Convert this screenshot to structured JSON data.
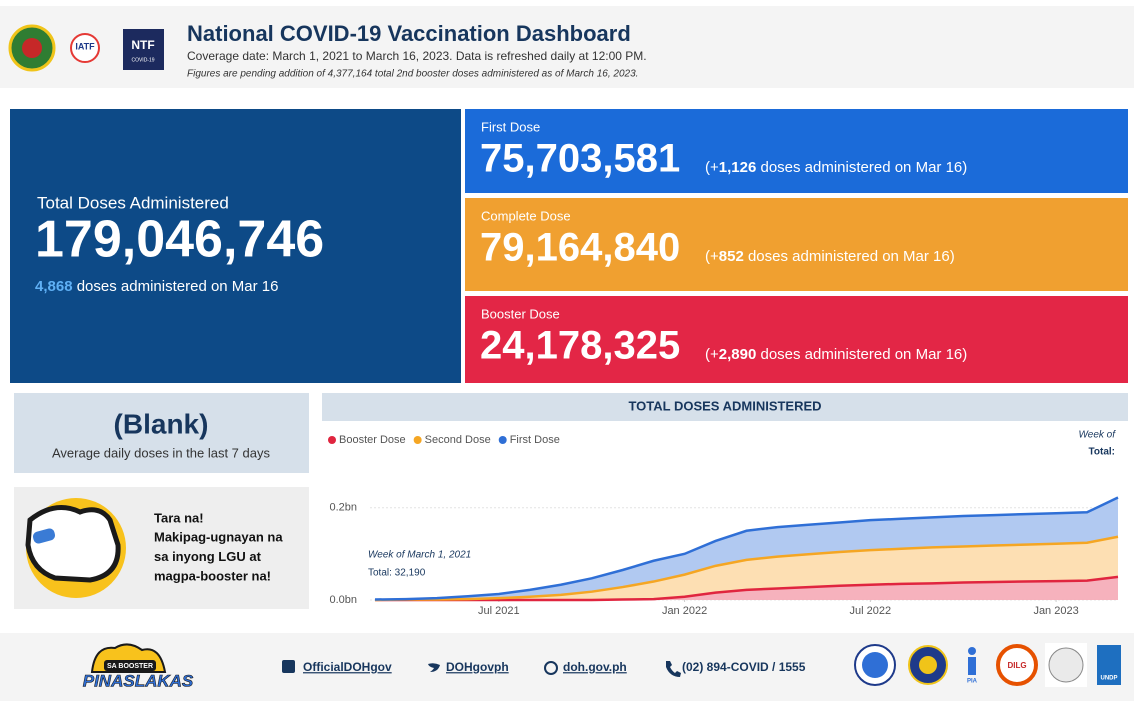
{
  "header": {
    "title": "National COVID-19 Vaccination Dashboard",
    "coverage": "Coverage date: March 1, 2021 to March 16, 2023. Data is refreshed daily at 12:00 PM.",
    "note": "Figures are pending addition of 4,377,164 total 2nd booster doses administered as of March 16, 2023.",
    "logos": {
      "iatf": "IATF",
      "ntf": "NTF",
      "ntf_sub": "COVID-19"
    }
  },
  "total": {
    "label": "Total Doses Administered",
    "value": "179,046,746",
    "today": "4,868",
    "today_text": " doses administered on Mar 16"
  },
  "doses": [
    {
      "label": "First Dose",
      "value": "75,703,581",
      "prefix": "(+",
      "today": "1,126",
      "today_text": " doses administered on Mar 16)"
    },
    {
      "label": "Complete Dose",
      "value": "79,164,840",
      "prefix": "(+",
      "today": "852",
      "today_text": " doses administered on Mar 16)"
    },
    {
      "label": "Booster Dose",
      "value": "24,178,325",
      "prefix": "(+",
      "today": "2,890",
      "today_text": " doses administered on Mar 16)"
    }
  ],
  "average": {
    "value": "(Blank)",
    "label": "Average daily doses in the last 7 days"
  },
  "promo": {
    "lines": [
      "Tara na!",
      "Makipag-ugnayan na",
      "sa inyong LGU at",
      "magpa-booster na!"
    ]
  },
  "chart_data": {
    "type": "stacked_area",
    "title": "TOTAL DOSES ADMINISTERED",
    "annotations": [
      "Week of",
      "Total:",
      "Week of March 1, 2021",
      "Total: 32,190"
    ],
    "x": [
      "2021-03",
      "2021-04",
      "2021-05",
      "2021-06",
      "2021-07",
      "2021-08",
      "2021-09",
      "2021-10",
      "2021-11",
      "2021-12",
      "2022-01",
      "2022-02",
      "2022-03",
      "2022-04",
      "2022-05",
      "2022-06",
      "2022-07",
      "2022-08",
      "2022-09",
      "2022-10",
      "2022-11",
      "2022-12",
      "2023-01",
      "2023-02",
      "2023-03"
    ],
    "xlim": [
      "2021-03",
      "2023-03"
    ],
    "xticks": [
      {
        "value": "2021-07",
        "label": "Jul 2021"
      },
      {
        "value": "2022-01",
        "label": "Jan 2022"
      },
      {
        "value": "2022-07",
        "label": "Jul 2022"
      },
      {
        "value": "2023-01",
        "label": "Jan 2023"
      }
    ],
    "ylim": [
      0,
      0.26
    ],
    "yticks": [
      {
        "value": 0,
        "label": "0.0bn"
      },
      {
        "value": 0.2,
        "label": "0.2bn"
      }
    ],
    "grid": true,
    "series": [
      {
        "name": "Booster Dose",
        "color": "#e0253f",
        "fill": "#f5aab6",
        "values": [
          0,
          0,
          0,
          0,
          0,
          0,
          0,
          0,
          0.001,
          0.002,
          0.007,
          0.016,
          0.022,
          0.025,
          0.028,
          0.031,
          0.033,
          0.035,
          0.036,
          0.038,
          0.039,
          0.04,
          0.041,
          0.042,
          0.05
        ]
      },
      {
        "name": "Second Dose",
        "color": "#f5a623",
        "fill": "#fddcab",
        "values": [
          0,
          0.001,
          0.001,
          0.002,
          0.004,
          0.007,
          0.011,
          0.018,
          0.027,
          0.038,
          0.048,
          0.058,
          0.065,
          0.069,
          0.071,
          0.073,
          0.075,
          0.076,
          0.078,
          0.078,
          0.079,
          0.08,
          0.081,
          0.082,
          0.087
        ]
      },
      {
        "name": "First Dose",
        "color": "#2f6fd6",
        "fill": "#a9c3ef",
        "values": [
          0.001,
          0.001,
          0.003,
          0.006,
          0.009,
          0.015,
          0.022,
          0.029,
          0.037,
          0.045,
          0.045,
          0.054,
          0.063,
          0.064,
          0.064,
          0.064,
          0.065,
          0.065,
          0.065,
          0.066,
          0.066,
          0.066,
          0.066,
          0.066,
          0.085
        ]
      }
    ]
  },
  "footer": {
    "campaign": {
      "top": "SA BOOSTER",
      "main": "PINASLAKAS"
    },
    "links": [
      "OfficialDOHgov",
      "DOHgovph",
      "doh.gov.ph",
      "(02) 894-COVID / 1555"
    ],
    "logos": {
      "pia": "PIA",
      "dilg": "DILG",
      "undp": "UNDP"
    }
  }
}
